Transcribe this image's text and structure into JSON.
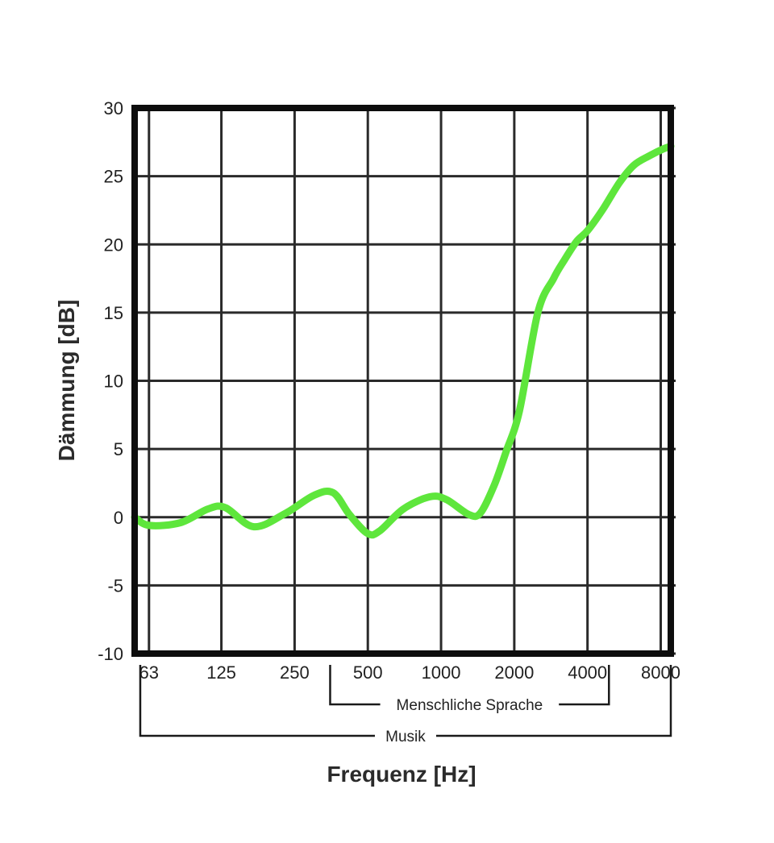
{
  "chart_data": {
    "type": "line",
    "xlabel": "Frequenz [Hz]",
    "ylabel": "Dämmung [dB]",
    "x_scale": "log2",
    "x_ticks": [
      "63",
      "125",
      "250",
      "500",
      "1000",
      "2000",
      "4000",
      "8000"
    ],
    "x_tick_values": [
      63,
      125,
      250,
      500,
      1000,
      2000,
      4000,
      8000
    ],
    "xlim": [
      55,
      8800
    ],
    "ylim": [
      -10,
      30
    ],
    "y_ticks": [
      "30",
      "25",
      "20",
      "15",
      "10",
      "5",
      "0",
      "-5",
      "-10"
    ],
    "y_tick_values": [
      30,
      25,
      20,
      15,
      10,
      5,
      0,
      -5,
      -10
    ],
    "grid": true,
    "series": [
      {
        "color": "#5ee63c",
        "x": [
          55,
          63,
          85,
          110,
          130,
          170,
          230,
          300,
          360,
          420,
          500,
          560,
          700,
          900,
          1050,
          1300,
          1450,
          1650,
          1850,
          2100,
          2500,
          2900,
          3200,
          3600,
          4000,
          4600,
          5400,
          6200,
          7200,
          8200,
          8800
        ],
        "y": [
          0,
          -0.6,
          -0.4,
          0.6,
          0.7,
          -0.7,
          0.3,
          1.6,
          1.8,
          0.2,
          -1.2,
          -1.0,
          0.6,
          1.5,
          1.3,
          0.2,
          0.3,
          2.3,
          4.8,
          7.8,
          15.0,
          17.5,
          18.8,
          20.2,
          21.0,
          22.5,
          24.5,
          25.8,
          26.5,
          27.0,
          27.2
        ]
      }
    ],
    "ranges": [
      {
        "label": "Menschliche Sprache",
        "from": 350,
        "to": 4900
      },
      {
        "label": "Musik",
        "from": 58,
        "to": 8800
      }
    ]
  }
}
